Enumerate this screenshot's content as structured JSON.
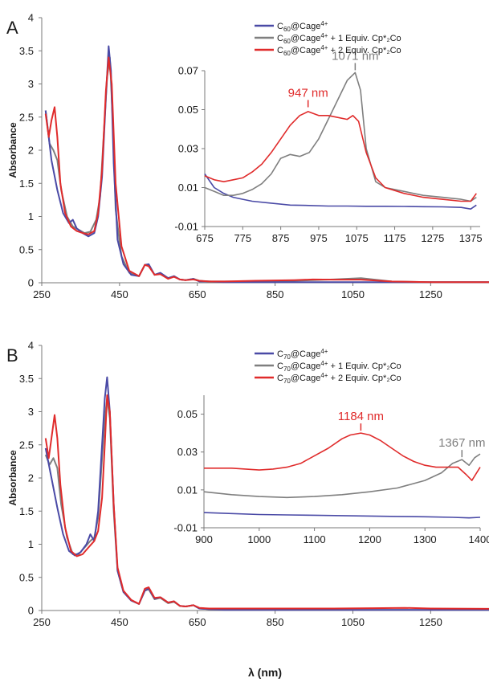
{
  "chart_data": [
    {
      "panel_label": "A",
      "type": "line",
      "ylabel": "Absorbance",
      "xlim": [
        250,
        1400
      ],
      "ylim": [
        0,
        4
      ],
      "xticks": [
        250,
        450,
        650,
        850,
        1050,
        1250
      ],
      "yticks": [
        0,
        0.5,
        1,
        1.5,
        2,
        2.5,
        3,
        3.5,
        4
      ],
      "legend_position": "top-right",
      "series": [
        {
          "name_parts": [
            "C",
            "60",
            "@Cage",
            "4+",
            ""
          ],
          "color": "#4a4aa6",
          "x": [
            260,
            275,
            290,
            305,
            320,
            330,
            340,
            355,
            370,
            385,
            395,
            405,
            415,
            422,
            428,
            435,
            445,
            460,
            480,
            500,
            515,
            525,
            540,
            555,
            575,
            590,
            605,
            620,
            640,
            655,
            680,
            720,
            800,
            900,
            1000,
            1100,
            1250,
            1400
          ],
          "y": [
            2.6,
            1.85,
            1.4,
            1.05,
            0.9,
            0.95,
            0.82,
            0.75,
            0.7,
            0.75,
            1.0,
            1.6,
            2.8,
            3.57,
            3.2,
            1.8,
            0.65,
            0.28,
            0.12,
            0.1,
            0.27,
            0.28,
            0.12,
            0.15,
            0.07,
            0.1,
            0.05,
            0.04,
            0.06,
            0.02,
            0.02,
            0.01,
            0.01,
            0.01,
            0.01,
            0.01,
            0.01,
            0.01
          ]
        },
        {
          "name_parts": [
            "C",
            "60",
            "@Cage",
            "4+",
            " + 1 Equiv. Cp*₂Co"
          ],
          "color": "#7f7f7f",
          "x": [
            260,
            270,
            280,
            290,
            300,
            315,
            330,
            345,
            360,
            375,
            390,
            400,
            410,
            418,
            425,
            432,
            440,
            455,
            475,
            500,
            515,
            525,
            540,
            555,
            575,
            590,
            605,
            620,
            640,
            655,
            680,
            720,
            800,
            900,
            1000,
            1071,
            1150,
            1250,
            1400
          ],
          "y": [
            2.6,
            2.1,
            2.0,
            1.85,
            1.4,
            1.0,
            0.85,
            0.8,
            0.75,
            0.77,
            0.95,
            1.3,
            2.3,
            3.1,
            3.4,
            2.5,
            1.1,
            0.4,
            0.15,
            0.1,
            0.27,
            0.26,
            0.12,
            0.14,
            0.07,
            0.1,
            0.05,
            0.04,
            0.06,
            0.03,
            0.02,
            0.02,
            0.02,
            0.03,
            0.05,
            0.07,
            0.02,
            0.01,
            0.01
          ]
        },
        {
          "name_parts": [
            "C",
            "60",
            "@Cage",
            "4+",
            " + 2 Equiv. Cp*₂Co"
          ],
          "color": "#e02b2b",
          "x": [
            260,
            268,
            275,
            283,
            290,
            298,
            310,
            325,
            340,
            355,
            370,
            385,
            395,
            405,
            415,
            422,
            430,
            440,
            455,
            475,
            500,
            515,
            525,
            540,
            555,
            575,
            590,
            605,
            620,
            640,
            655,
            680,
            720,
            800,
            900,
            947,
            1000,
            1071,
            1150,
            1250,
            1400
          ],
          "y": [
            2.55,
            2.2,
            2.45,
            2.65,
            2.2,
            1.5,
            1.05,
            0.85,
            0.78,
            0.75,
            0.73,
            0.78,
            1.05,
            1.7,
            2.9,
            3.4,
            3.0,
            1.5,
            0.55,
            0.18,
            0.1,
            0.27,
            0.25,
            0.12,
            0.13,
            0.06,
            0.09,
            0.05,
            0.04,
            0.05,
            0.03,
            0.02,
            0.02,
            0.03,
            0.04,
            0.05,
            0.047,
            0.047,
            0.02,
            0.01,
            0.01
          ]
        }
      ],
      "inset": {
        "xlim": [
          675,
          1400
        ],
        "ylim": [
          -0.01,
          0.07
        ],
        "xticks": [
          675,
          775,
          875,
          975,
          1075,
          1175,
          1275,
          1375
        ],
        "yticks": [
          -0.01,
          0.01,
          0.03,
          0.05,
          0.07
        ],
        "series": [
          {
            "color": "#4a4aa6",
            "x": [
              675,
              700,
              725,
              750,
              775,
              800,
              850,
              900,
              950,
              1000,
              1050,
              1100,
              1150,
              1200,
              1250,
              1300,
              1350,
              1375,
              1390
            ],
            "y": [
              0.017,
              0.01,
              0.007,
              0.005,
              0.004,
              0.003,
              0.002,
              0.001,
              0.0008,
              0.0005,
              0.0005,
              0.0004,
              0.0004,
              0.0003,
              0.0002,
              0.0001,
              -0.0002,
              -0.001,
              0.001
            ]
          },
          {
            "color": "#7f7f7f",
            "x": [
              675,
              700,
              725,
              750,
              775,
              800,
              825,
              850,
              875,
              900,
              925,
              950,
              975,
              1000,
              1025,
              1050,
              1071,
              1085,
              1100,
              1125,
              1150,
              1200,
              1250,
              1300,
              1350,
              1375,
              1390
            ],
            "y": [
              0.01,
              0.008,
              0.006,
              0.006,
              0.007,
              0.009,
              0.012,
              0.017,
              0.025,
              0.027,
              0.026,
              0.028,
              0.035,
              0.045,
              0.055,
              0.065,
              0.069,
              0.06,
              0.03,
              0.013,
              0.01,
              0.008,
              0.006,
              0.005,
              0.004,
              0.003,
              0.005
            ]
          },
          {
            "color": "#e02b2b",
            "x": [
              675,
              700,
              725,
              750,
              775,
              800,
              825,
              850,
              875,
              900,
              925,
              947,
              975,
              1000,
              1025,
              1050,
              1065,
              1080,
              1100,
              1125,
              1150,
              1200,
              1250,
              1300,
              1350,
              1375,
              1390
            ],
            "y": [
              0.016,
              0.014,
              0.013,
              0.014,
              0.015,
              0.018,
              0.022,
              0.028,
              0.035,
              0.042,
              0.047,
              0.049,
              0.047,
              0.047,
              0.046,
              0.045,
              0.047,
              0.044,
              0.028,
              0.015,
              0.01,
              0.007,
              0.005,
              0.004,
              0.003,
              0.003,
              0.007
            ]
          }
        ],
        "annotations": [
          {
            "text": "947 nm",
            "x": 947,
            "y": 0.05,
            "color": "#e02b2b"
          },
          {
            "text": "1071 nm",
            "x": 1071,
            "y": 0.069,
            "color": "#7f7f7f"
          }
        ]
      }
    },
    {
      "panel_label": "B",
      "type": "line",
      "ylabel": "Absorbance",
      "xlabel": "λ (nm)",
      "xlim": [
        250,
        1400
      ],
      "ylim": [
        0,
        4
      ],
      "xticks": [
        250,
        450,
        650,
        850,
        1050,
        1250
      ],
      "yticks": [
        0,
        0.5,
        1,
        1.5,
        2,
        2.5,
        3,
        3.5,
        4
      ],
      "legend_position": "top-right",
      "series": [
        {
          "name_parts": [
            "C",
            "70",
            "@Cage",
            "4+",
            ""
          ],
          "color": "#4a4aa6",
          "x": [
            260,
            275,
            290,
            305,
            320,
            335,
            350,
            365,
            375,
            385,
            395,
            405,
            412,
            418,
            425,
            435,
            445,
            460,
            480,
            500,
            515,
            525,
            540,
            555,
            575,
            590,
            605,
            620,
            640,
            655,
            680,
            720,
            800,
            900,
            1000,
            1100,
            1250,
            1400
          ],
          "y": [
            2.45,
            2.0,
            1.55,
            1.15,
            0.9,
            0.83,
            0.88,
            1.0,
            1.15,
            1.05,
            1.5,
            2.5,
            3.2,
            3.52,
            3.0,
            1.6,
            0.6,
            0.28,
            0.15,
            0.1,
            0.3,
            0.33,
            0.18,
            0.2,
            0.12,
            0.14,
            0.07,
            0.06,
            0.08,
            0.03,
            0.02,
            0.01,
            0.01,
            0.01,
            0.01,
            0.01,
            0.01,
            0.01
          ]
        },
        {
          "name_parts": [
            "C",
            "70",
            "@Cage",
            "4+",
            " + 1 Equiv. Cp*₂Co"
          ],
          "color": "#7f7f7f",
          "x": [
            260,
            270,
            280,
            290,
            300,
            315,
            330,
            345,
            360,
            375,
            385,
            395,
            405,
            412,
            418,
            425,
            435,
            445,
            460,
            480,
            500,
            515,
            525,
            540,
            555,
            575,
            590,
            605,
            620,
            640,
            655,
            680,
            720,
            800,
            900,
            1000,
            1100,
            1250,
            1400
          ],
          "y": [
            2.35,
            2.2,
            2.3,
            2.15,
            1.6,
            1.1,
            0.85,
            0.85,
            0.95,
            1.05,
            1.1,
            1.4,
            2.3,
            2.9,
            3.2,
            2.9,
            1.5,
            0.6,
            0.28,
            0.15,
            0.1,
            0.3,
            0.32,
            0.17,
            0.19,
            0.11,
            0.13,
            0.07,
            0.06,
            0.08,
            0.03,
            0.02,
            0.01,
            0.01,
            0.01,
            0.01,
            0.01,
            0.01,
            0.02
          ]
        },
        {
          "name_parts": [
            "C",
            "70",
            "@Cage",
            "4+",
            " + 2 Equiv. Cp*₂Co"
          ],
          "color": "#e02b2b",
          "x": [
            260,
            268,
            275,
            283,
            290,
            298,
            310,
            325,
            340,
            355,
            370,
            385,
            395,
            405,
            412,
            418,
            425,
            435,
            445,
            460,
            480,
            500,
            515,
            525,
            540,
            555,
            575,
            590,
            605,
            620,
            640,
            655,
            680,
            720,
            800,
            900,
            1000,
            1100,
            1184,
            1250,
            1400
          ],
          "y": [
            2.6,
            2.3,
            2.6,
            2.95,
            2.6,
            1.9,
            1.25,
            0.9,
            0.82,
            0.85,
            0.95,
            1.05,
            1.2,
            1.7,
            2.5,
            3.25,
            3.0,
            1.6,
            0.65,
            0.3,
            0.16,
            0.1,
            0.33,
            0.35,
            0.19,
            0.2,
            0.12,
            0.14,
            0.07,
            0.06,
            0.08,
            0.04,
            0.03,
            0.03,
            0.03,
            0.03,
            0.03,
            0.035,
            0.04,
            0.03,
            0.025
          ]
        }
      ],
      "inset": {
        "xlim": [
          900,
          1400
        ],
        "ylim": [
          -0.01,
          0.06
        ],
        "xticks": [
          900,
          1000,
          1100,
          1200,
          1300,
          1400
        ],
        "yticks": [
          -0.01,
          0.01,
          0.03,
          0.05
        ],
        "series": [
          {
            "color": "#4a4aa6",
            "x": [
              900,
              950,
              1000,
              1050,
              1100,
              1150,
              1200,
              1250,
              1300,
              1350,
              1380,
              1400
            ],
            "y": [
              -0.002,
              -0.0025,
              -0.003,
              -0.0032,
              -0.0034,
              -0.0036,
              -0.0038,
              -0.004,
              -0.0042,
              -0.0045,
              -0.0048,
              -0.0045
            ]
          },
          {
            "color": "#7f7f7f",
            "x": [
              900,
              950,
              1000,
              1050,
              1100,
              1150,
              1200,
              1250,
              1300,
              1330,
              1350,
              1367,
              1380,
              1390,
              1400
            ],
            "y": [
              0.009,
              0.0075,
              0.0065,
              0.006,
              0.0065,
              0.0075,
              0.009,
              0.011,
              0.015,
              0.019,
              0.024,
              0.026,
              0.023,
              0.027,
              0.029
            ]
          },
          {
            "color": "#e02b2b",
            "x": [
              900,
              950,
              1000,
              1025,
              1050,
              1075,
              1100,
              1125,
              1150,
              1165,
              1184,
              1200,
              1220,
              1240,
              1260,
              1280,
              1300,
              1320,
              1340,
              1360,
              1375,
              1385,
              1400
            ],
            "y": [
              0.0215,
              0.0215,
              0.0205,
              0.021,
              0.022,
              0.024,
              0.028,
              0.032,
              0.037,
              0.039,
              0.04,
              0.039,
              0.036,
              0.032,
              0.028,
              0.025,
              0.023,
              0.022,
              0.022,
              0.022,
              0.018,
              0.015,
              0.022
            ]
          }
        ],
        "annotations": [
          {
            "text": "1184 nm",
            "x": 1184,
            "y": 0.04,
            "color": "#e02b2b"
          },
          {
            "text": "1367 nm",
            "x": 1367,
            "y": 0.026,
            "color": "#7f7f7f"
          }
        ]
      }
    }
  ]
}
